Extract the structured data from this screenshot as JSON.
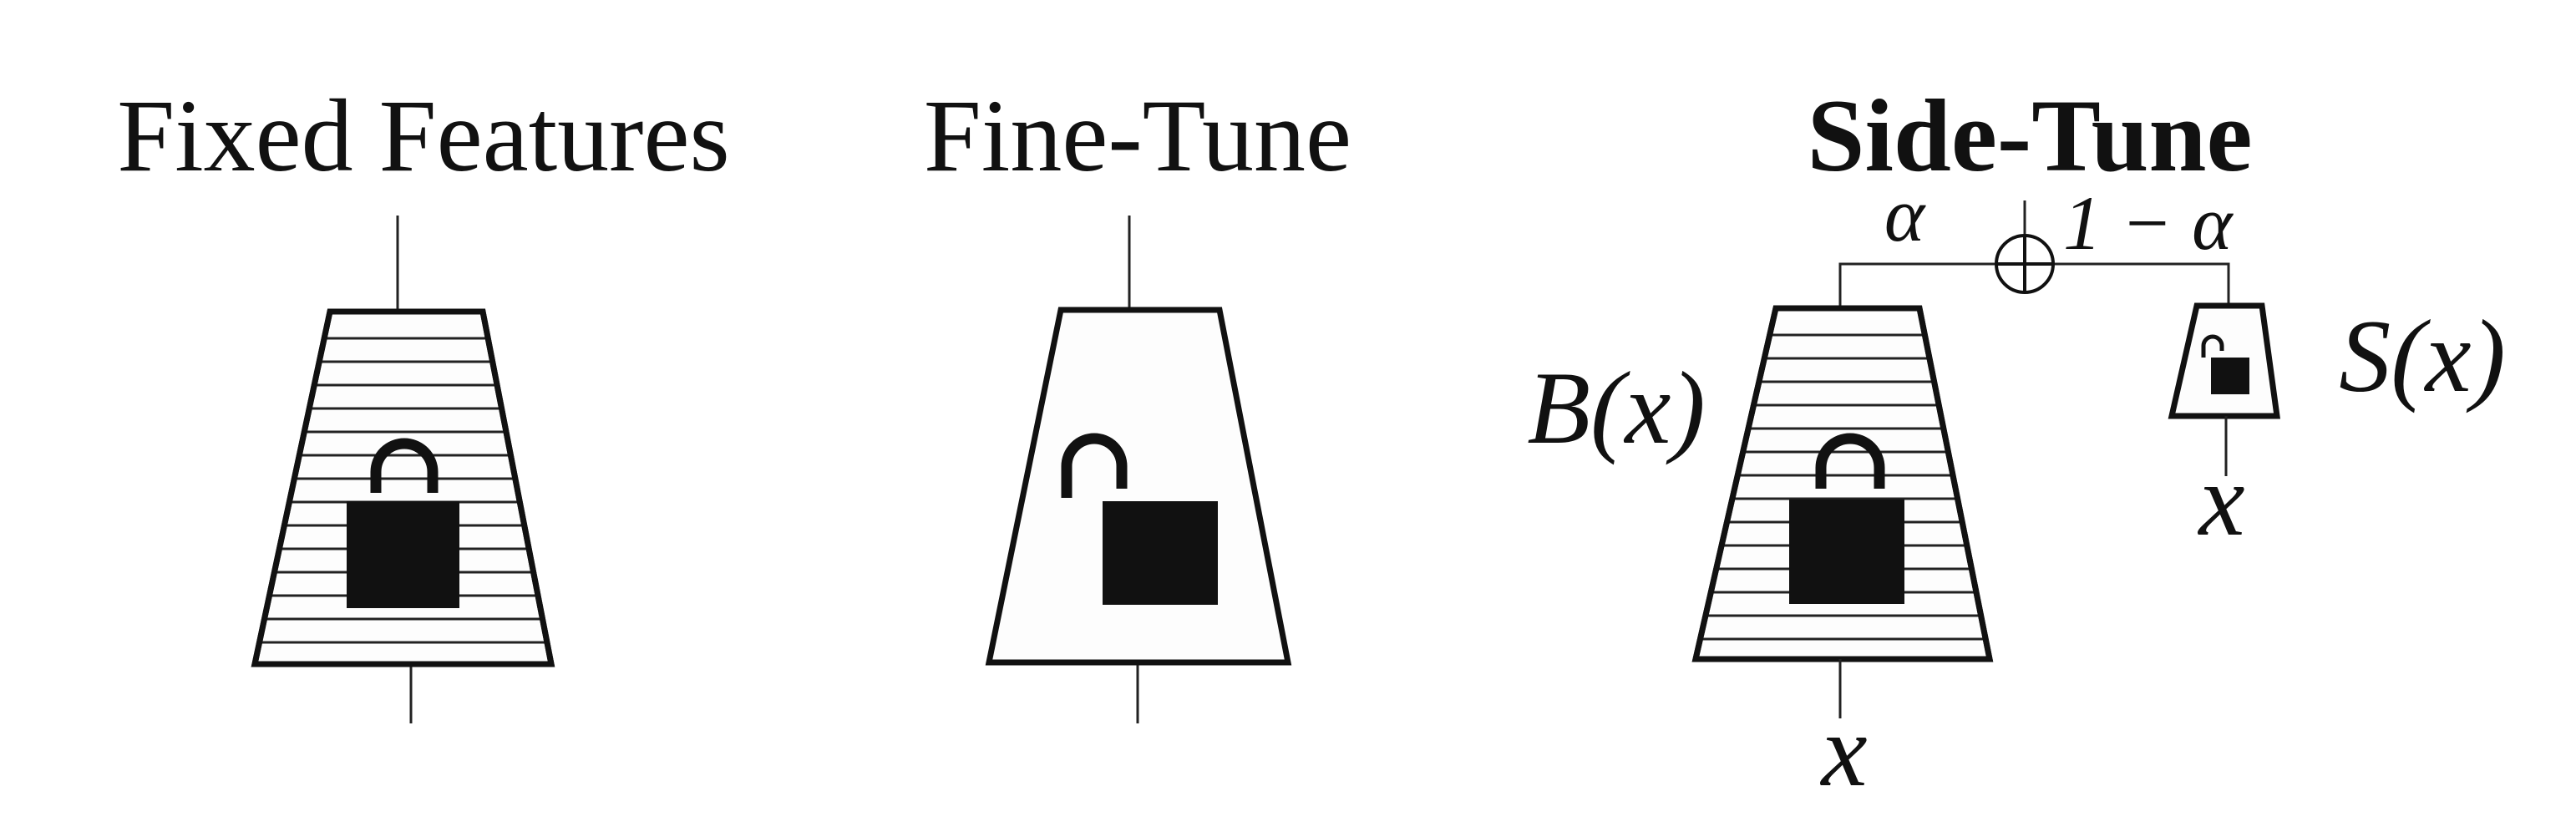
{
  "panels": [
    {
      "title": "Fixed Features",
      "lock": "locked",
      "hatched": true
    },
    {
      "title": "Fine-Tune",
      "lock": "unlocked",
      "hatched": false
    },
    {
      "title": "Side-Tune",
      "lock": "locked",
      "hatched": true
    }
  ],
  "side_tune": {
    "alpha_label": "α",
    "one_minus_alpha_label": "1 − α",
    "base_label": "B(x)",
    "side_label": "S(x)",
    "input_label_base": "x",
    "input_label_side": "x",
    "combine_symbol": "⊕"
  }
}
